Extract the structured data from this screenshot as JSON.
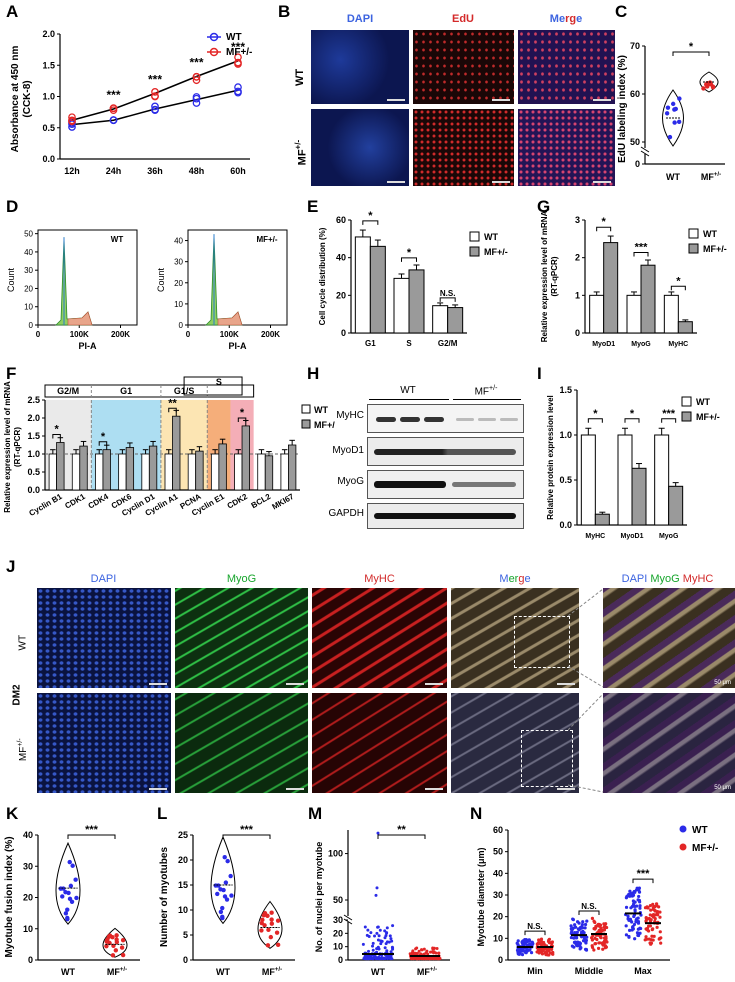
{
  "panels": [
    "A",
    "B",
    "C",
    "D",
    "E",
    "F",
    "G",
    "H",
    "I",
    "J",
    "K",
    "L",
    "M",
    "N"
  ],
  "groups": {
    "wt": "WT",
    "mf": "MF+/-",
    "mf_base": "MF",
    "mf_sup": "+/-"
  },
  "colors": {
    "wt": "#2b2be8",
    "mf": "#e32626",
    "dapi": "#3d64e0",
    "edu": "#d42a2a",
    "myog": "#17a52c",
    "myhc": "#d22a2a"
  },
  "stars3": "***",
  "stars2": "**",
  "star1": "*",
  "ns": "N.S.",
  "panel_a": {
    "ylabel": "Absorbance at 450 nm",
    "ylabel2": "(CCK-8)",
    "categories": [
      "12h",
      "24h",
      "36h",
      "48h",
      "60h"
    ],
    "yticks": [
      "0.0",
      "0.5",
      "1.0",
      "1.5",
      "2.0"
    ],
    "ylim": [
      0,
      2.0
    ],
    "series": [
      {
        "name": "WT",
        "values": [
          0.55,
          0.62,
          0.8,
          0.95,
          1.1
        ]
      },
      {
        "name": "MF+/-",
        "values": [
          0.62,
          0.8,
          1.05,
          1.32,
          1.57
        ]
      }
    ],
    "sig": [
      "",
      "***",
      "***",
      "***",
      "***"
    ]
  },
  "panel_b": {
    "cols": [
      "DAPI",
      "EdU",
      "Merge"
    ],
    "rows": [
      "WT",
      "MF+/-"
    ]
  },
  "panel_c": {
    "ylabel": "EdU labeling index (%)",
    "yticks": [
      "0",
      "50",
      "60",
      "70"
    ],
    "wt_mean": 55,
    "mf_mean": 62.5,
    "sig": "*"
  },
  "panel_d": {
    "left": {
      "title": "WT",
      "yticks": [
        "0",
        "10",
        "20",
        "30",
        "40",
        "50"
      ],
      "ylabel": "Count",
      "xlabel": "PI-A",
      "xticks": [
        "0",
        "100K",
        "200K"
      ]
    },
    "right": {
      "title": "MF+/-",
      "yticks": [
        "0",
        "10",
        "20",
        "30",
        "40"
      ],
      "ylabel": "Count",
      "xlabel": "PI-A",
      "xticks": [
        "0",
        "100K",
        "200K"
      ]
    }
  },
  "panel_e": {
    "ylabel": "Cell cycle distribution (%)",
    "categories": [
      "G1",
      "S",
      "G2/M"
    ],
    "yticks": [
      "0",
      "20",
      "40",
      "60"
    ],
    "ylim": [
      0,
      60
    ],
    "series": [
      {
        "name": "WT",
        "values": [
          51,
          29,
          14.5
        ]
      },
      {
        "name": "MF+/-",
        "values": [
          46,
          33.5,
          13.5
        ]
      }
    ],
    "sig": [
      "*",
      "*",
      "N.S."
    ]
  },
  "panel_f": {
    "ylabel": "Relative expression level of mRNA",
    "ylabel2": "(RT-qPCR)",
    "phases": [
      "G2/M",
      "G1",
      "G1/S",
      "S"
    ],
    "categories": [
      "Cyclin B1",
      "CDK1",
      "CDK4",
      "CDK6",
      "Cyclin D1",
      "Cyclin A1",
      "PCNA",
      "Cyclin E1",
      "CDK2",
      "BCL2",
      "MKI67"
    ],
    "yticks": [
      "0.0",
      "0.5",
      "1.0",
      "1.5",
      "2.0",
      "2.5"
    ],
    "ylim": [
      0,
      2.5
    ],
    "series": [
      {
        "name": "WT",
        "values": [
          1,
          1,
          1,
          1,
          1,
          1,
          1,
          1,
          1,
          1,
          1
        ]
      },
      {
        "name": "MF+/-",
        "values": [
          1.32,
          1.22,
          1.12,
          1.18,
          1.22,
          2.05,
          1.08,
          1.28,
          1.78,
          0.95,
          1.25
        ]
      }
    ],
    "sig": [
      "*",
      "",
      "*",
      "",
      "",
      "**",
      "",
      "",
      "*",
      "",
      ""
    ]
  },
  "panel_g": {
    "ylabel": "Relative expression level of mRNA",
    "ylabel2": "(RT-qPCR)",
    "categories": [
      "MyoD1",
      "MyoG",
      "MyHC"
    ],
    "yticks": [
      "0",
      "1",
      "2",
      "3"
    ],
    "ylim": [
      0,
      3
    ],
    "series": [
      {
        "name": "WT",
        "values": [
          1,
          1,
          1
        ]
      },
      {
        "name": "MF+/-",
        "values": [
          2.4,
          1.8,
          0.3
        ]
      }
    ],
    "sig": [
      "*",
      "***",
      "*"
    ]
  },
  "panel_h": {
    "groups": [
      "WT",
      "MF+/-"
    ],
    "bands": [
      "MyHC",
      "MyoD1",
      "MyoG",
      "GAPDH"
    ]
  },
  "panel_i": {
    "ylabel": "Relative protein expression level",
    "categories": [
      "MyHC",
      "MyoD1",
      "MyoG"
    ],
    "yticks": [
      "0.0",
      "0.5",
      "1.0",
      "1.5"
    ],
    "ylim": [
      0,
      1.5
    ],
    "series": [
      {
        "name": "WT",
        "values": [
          1,
          1,
          1
        ]
      },
      {
        "name": "MF+/-",
        "values": [
          0.12,
          0.63,
          0.43
        ]
      }
    ],
    "sig": [
      "*",
      "*",
      "***"
    ]
  },
  "panel_j": {
    "cols": [
      "DAPI",
      "MyoG",
      "MyHC",
      "Merge"
    ],
    "merge_label": [
      "DAPI",
      "MyoG",
      "MyHC"
    ],
    "rows": [
      "WT",
      "MF+/-"
    ],
    "side": "DM2",
    "scale": "50 μm"
  },
  "panel_k": {
    "ylabel": "Myotube fusion index (%)",
    "yticks": [
      "0",
      "10",
      "20",
      "30",
      "40"
    ],
    "wt_mean": 23,
    "mf_mean": 5,
    "sig": "***"
  },
  "panel_l": {
    "ylabel": "Number of myotubes",
    "yticks": [
      "0",
      "5",
      "10",
      "15",
      "20",
      "25"
    ],
    "wt_mean": 15,
    "mf_mean": 6.5,
    "sig": "***"
  },
  "panel_m": {
    "ylabel": "No. of nuclei per myotube",
    "yticks": [
      "0",
      "10",
      "20",
      "30",
      "50",
      "100"
    ],
    "sig": "**"
  },
  "panel_n": {
    "ylabel": "Myotube diameter (μm)",
    "categories": [
      "Min",
      "Middle",
      "Max"
    ],
    "yticks": [
      "0",
      "10",
      "20",
      "30",
      "40",
      "50",
      "60"
    ],
    "ylim": [
      0,
      60
    ],
    "series": [
      {
        "name": "WT",
        "values": [
          6,
          11.5,
          21.5
        ]
      },
      {
        "name": "MF+/-",
        "values": [
          6,
          12,
          17
        ]
      }
    ],
    "sig": [
      "N.S.",
      "N.S.",
      "***"
    ]
  }
}
